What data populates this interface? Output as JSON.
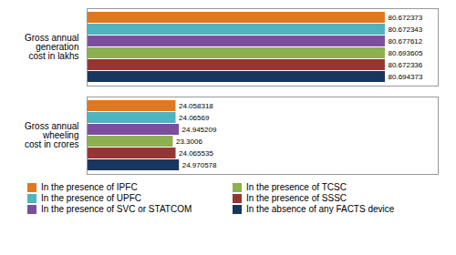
{
  "chart_data": {
    "type": "bar",
    "orientation": "horizontal",
    "categories": [
      "Gross annual\ngeneration\ncost in lakhs",
      "Gross annual\nwheeling\ncost in crores"
    ],
    "series": [
      {
        "name": "In the presence of IPFC",
        "color": "#E07820",
        "values": [
          80.672373,
          24.058318
        ]
      },
      {
        "name": "In the presence of UPFC",
        "color": "#4EB4BE",
        "values": [
          80.672343,
          24.06569
        ]
      },
      {
        "name": "In the presence of SVC or STATCOM",
        "color": "#7B4F9E",
        "values": [
          80.677612,
          24.945209
        ]
      },
      {
        "name": "In the presence of TCSC",
        "color": "#8DB050",
        "values": [
          80.693605,
          23.3006
        ]
      },
      {
        "name": "In the presence of SSSC",
        "color": "#963634",
        "values": [
          80.672336,
          24.065535
        ]
      },
      {
        "name": "In the absence of any FACTS device",
        "color": "#17375E",
        "values": [
          80.694373,
          24.970578
        ]
      }
    ],
    "xlim": [
      0,
      95
    ],
    "data_labels": true,
    "tick_labels": "y",
    "legend": "bottom"
  }
}
